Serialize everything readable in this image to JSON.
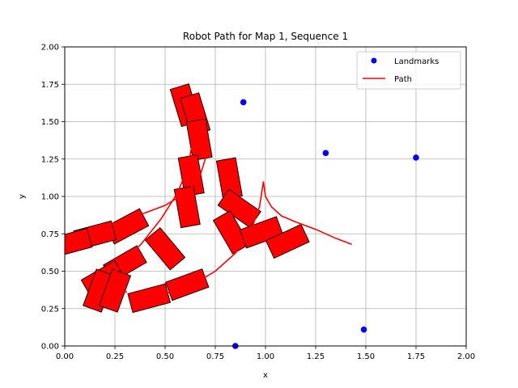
{
  "chart_data": {
    "type": "scatter",
    "title": "Robot Path for Map 1, Sequence 1",
    "xlabel": "x",
    "ylabel": "y",
    "xlim": [
      0,
      2
    ],
    "ylim": [
      0,
      2
    ],
    "grid": true,
    "legend_position": "top-right",
    "x_tick_labels": [
      "0.00",
      "0.25",
      "0.50",
      "0.75",
      "1.00",
      "1.25",
      "1.50",
      "1.75",
      "2.00"
    ],
    "y_tick_labels": [
      "0.00",
      "0.25",
      "0.50",
      "0.75",
      "1.00",
      "1.25",
      "1.50",
      "1.75",
      "2.00"
    ],
    "series": [
      {
        "name": "Landmarks",
        "style": "markers",
        "color": "#0000ff",
        "points": [
          [
            0.89,
            1.63
          ],
          [
            1.3,
            1.29
          ],
          [
            1.75,
            1.26
          ],
          [
            1.49,
            0.11
          ],
          [
            0.85,
            0.0
          ]
        ]
      },
      {
        "name": "Path",
        "style": "line",
        "color": "#ff0000",
        "segments": [
          [
            [
              0.0,
              0.68
            ],
            [
              0.15,
              0.77
            ],
            [
              0.28,
              0.84
            ],
            [
              0.4,
              0.89
            ],
            [
              0.5,
              0.94
            ],
            [
              0.6,
              1.02
            ],
            [
              0.67,
              1.12
            ],
            [
              0.7,
              1.25
            ],
            [
              0.71,
              1.4
            ],
            [
              0.69,
              1.55
            ],
            [
              0.65,
              1.69
            ]
          ],
          [
            [
              0.43,
              0.32
            ],
            [
              0.55,
              0.37
            ],
            [
              0.65,
              0.42
            ],
            [
              0.75,
              0.5
            ],
            [
              0.85,
              0.62
            ],
            [
              0.93,
              0.78
            ],
            [
              0.97,
              0.93
            ],
            [
              0.99,
              1.1
            ]
          ],
          [
            [
              0.99,
              1.1
            ],
            [
              1.0,
              1.0
            ],
            [
              1.03,
              0.93
            ],
            [
              1.08,
              0.87
            ],
            [
              1.15,
              0.83
            ],
            [
              1.25,
              0.78
            ],
            [
              1.35,
              0.72
            ],
            [
              1.43,
              0.68
            ]
          ],
          [
            [
              0.66,
              1.48
            ],
            [
              0.64,
              1.38
            ],
            [
              0.61,
              1.18
            ],
            [
              0.56,
              1.02
            ],
            [
              0.48,
              0.85
            ],
            [
              0.38,
              0.68
            ],
            [
              0.28,
              0.55
            ],
            [
              0.23,
              0.45
            ],
            [
              0.26,
              0.38
            ],
            [
              0.31,
              0.36
            ]
          ]
        ]
      }
    ],
    "robot_poses": {
      "color": "#ff0000",
      "edge_color": "#000000",
      "poses": [
        [
          0.6,
          1.61,
          -73
        ],
        [
          0.65,
          1.55,
          -73
        ],
        [
          0.67,
          1.38,
          -80
        ],
        [
          0.63,
          1.14,
          -80
        ],
        [
          0.61,
          0.93,
          -80
        ],
        [
          0.82,
          1.12,
          -80
        ],
        [
          0.87,
          0.92,
          -35
        ],
        [
          0.83,
          0.76,
          -60
        ],
        [
          0.98,
          0.76,
          20
        ],
        [
          1.11,
          0.7,
          25
        ],
        [
          0.61,
          0.41,
          20
        ],
        [
          0.42,
          0.32,
          15
        ],
        [
          0.5,
          0.65,
          -50
        ],
        [
          0.3,
          0.55,
          30
        ],
        [
          0.19,
          0.45,
          30
        ],
        [
          0.17,
          0.37,
          70
        ],
        [
          0.25,
          0.37,
          70
        ],
        [
          0.31,
          0.8,
          28
        ],
        [
          0.15,
          0.74,
          15
        ],
        [
          0.03,
          0.69,
          15
        ]
      ]
    }
  }
}
